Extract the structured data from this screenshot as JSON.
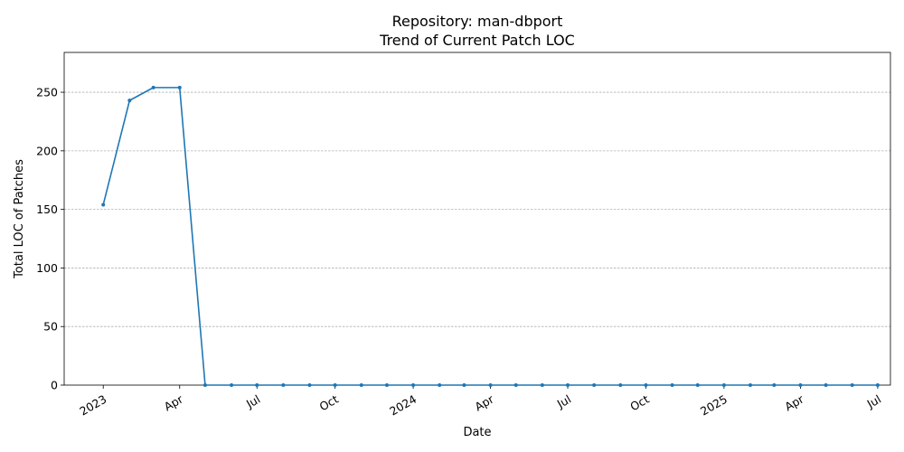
{
  "chart_data": {
    "type": "line",
    "title_line1": "Repository: man-dbport",
    "title_line2": "Trend of Current Patch LOC",
    "xlabel": "Date",
    "ylabel": "Total LOC of Patches",
    "ylim": [
      0,
      284
    ],
    "xlim": [
      "2022-11-16",
      "2025-07-16"
    ],
    "y_ticks": [
      0,
      50,
      100,
      150,
      200,
      250
    ],
    "x_ticks": [
      {
        "date": "2023-01-01",
        "label": "2023"
      },
      {
        "date": "2023-04-01",
        "label": "Apr"
      },
      {
        "date": "2023-07-01",
        "label": "Jul"
      },
      {
        "date": "2023-10-01",
        "label": "Oct"
      },
      {
        "date": "2024-01-01",
        "label": "2024"
      },
      {
        "date": "2024-04-01",
        "label": "Apr"
      },
      {
        "date": "2024-07-01",
        "label": "Jul"
      },
      {
        "date": "2024-10-01",
        "label": "Oct"
      },
      {
        "date": "2025-01-01",
        "label": "2025"
      },
      {
        "date": "2025-04-01",
        "label": "Apr"
      },
      {
        "date": "2025-07-01",
        "label": "Jul"
      }
    ],
    "grid": "horizontal dashed",
    "line_color": "#1f77b4",
    "series": [
      {
        "x": [
          "2023-01-01",
          "2023-02-01",
          "2023-03-01",
          "2023-04-01",
          "2023-05-01",
          "2023-06-01",
          "2023-07-01",
          "2023-08-01",
          "2023-09-01",
          "2023-10-01",
          "2023-11-01",
          "2023-12-01",
          "2024-01-01",
          "2024-02-01",
          "2024-03-01",
          "2024-04-01",
          "2024-05-01",
          "2024-06-01",
          "2024-07-01",
          "2024-08-01",
          "2024-09-01",
          "2024-10-01",
          "2024-11-01",
          "2024-12-01",
          "2025-01-01",
          "2025-02-01",
          "2025-03-01",
          "2025-04-01",
          "2025-05-01",
          "2025-06-01",
          "2025-07-01"
        ],
        "values": [
          154,
          243,
          254,
          254,
          0,
          0,
          0,
          0,
          0,
          0,
          0,
          0,
          0,
          0,
          0,
          0,
          0,
          0,
          0,
          0,
          0,
          0,
          0,
          0,
          0,
          0,
          0,
          0,
          0,
          0,
          0
        ]
      }
    ]
  }
}
